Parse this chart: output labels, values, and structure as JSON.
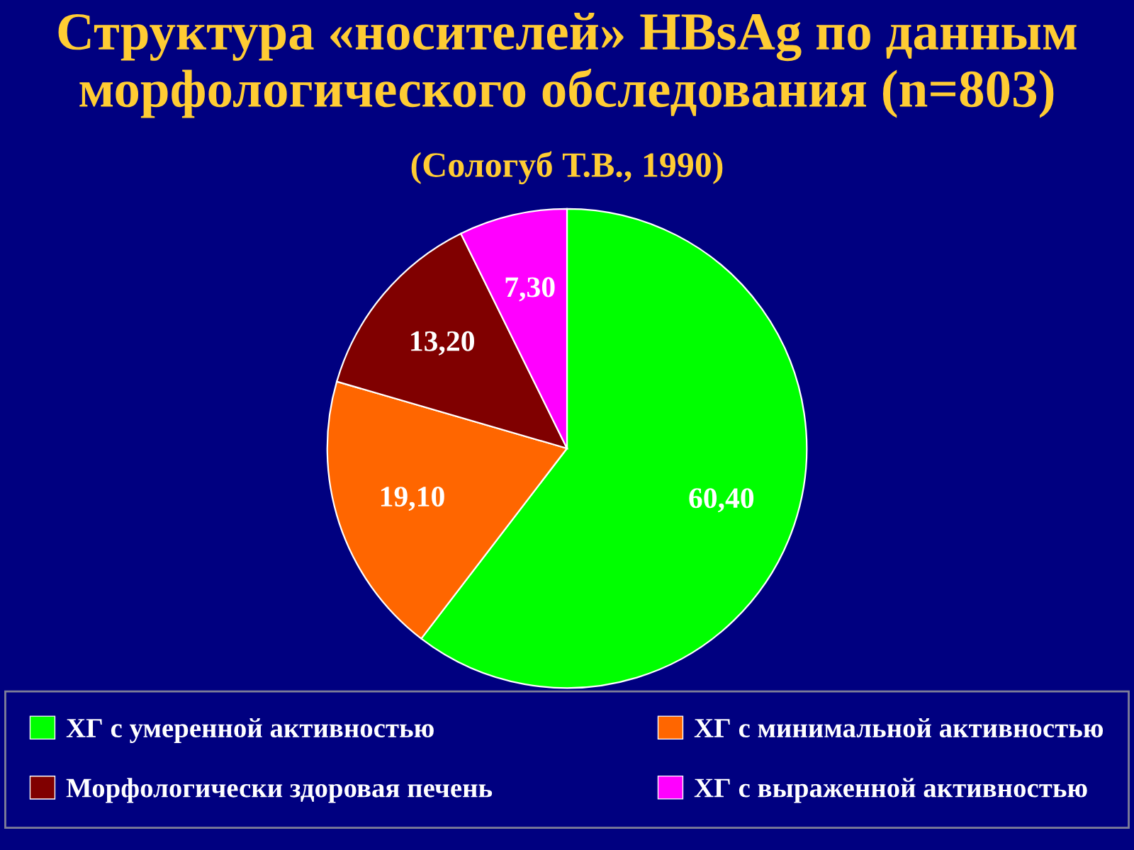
{
  "chart_data": {
    "type": "pie",
    "title": "Структура «носителей» HBsAg по данным морфологического обследования (n=803)",
    "subtitle": "(Сологуб Т.В., 1990)",
    "categories": [
      "ХГ с умеренной активностью",
      "ХГ с минимальной активностью",
      "Морфологически здоровая печень",
      "ХГ с выраженной активностью"
    ],
    "values": [
      60.4,
      19.1,
      13.2,
      7.3
    ],
    "value_labels": [
      "60,40",
      "19,10",
      "13,20",
      "7,30"
    ],
    "colors": [
      "#00ff00",
      "#ff6600",
      "#800000",
      "#ff00ff"
    ],
    "legend": "bottom"
  }
}
